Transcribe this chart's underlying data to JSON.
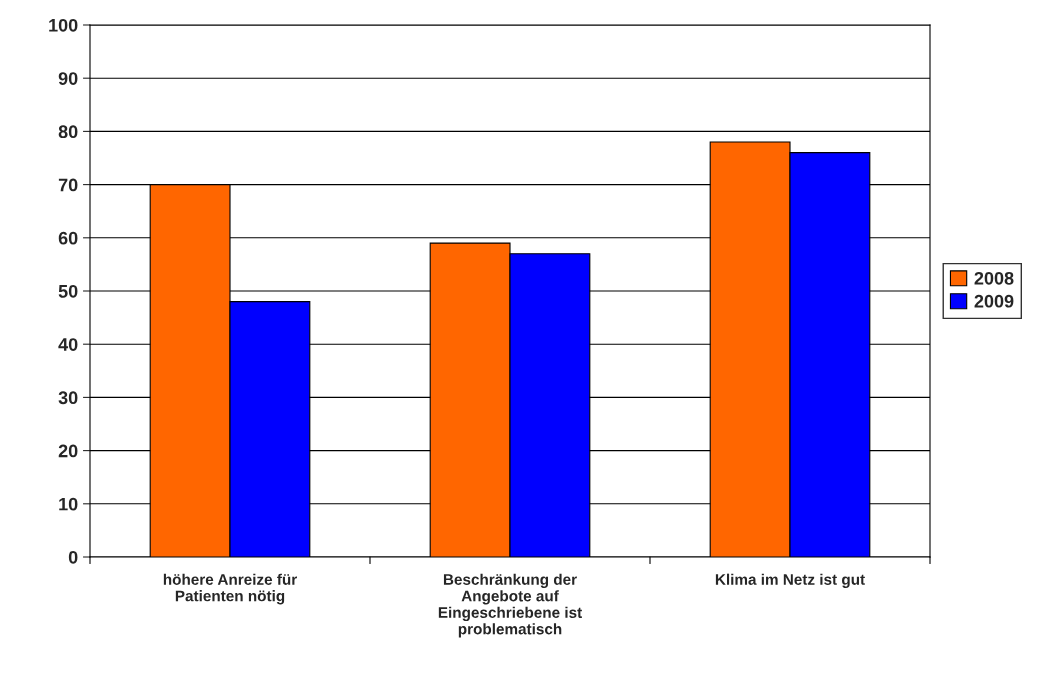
{
  "chart_data": {
    "type": "bar",
    "categories": [
      "höhere Anreize für\nPatienten nötig",
      "Beschränkung der\nAngebote auf\nEingeschriebene ist\nproblematisch",
      "Klima im Netz ist gut"
    ],
    "series": [
      {
        "name": "2008",
        "color": "#ff6600",
        "values": [
          70,
          59,
          78
        ]
      },
      {
        "name": "2009",
        "color": "#0000ff",
        "values": [
          48,
          57,
          76
        ]
      }
    ],
    "ylim": [
      0,
      100
    ],
    "yticks": [
      0,
      10,
      20,
      30,
      40,
      50,
      60,
      70,
      80,
      90,
      100
    ],
    "grid": "y",
    "legend": "right"
  }
}
